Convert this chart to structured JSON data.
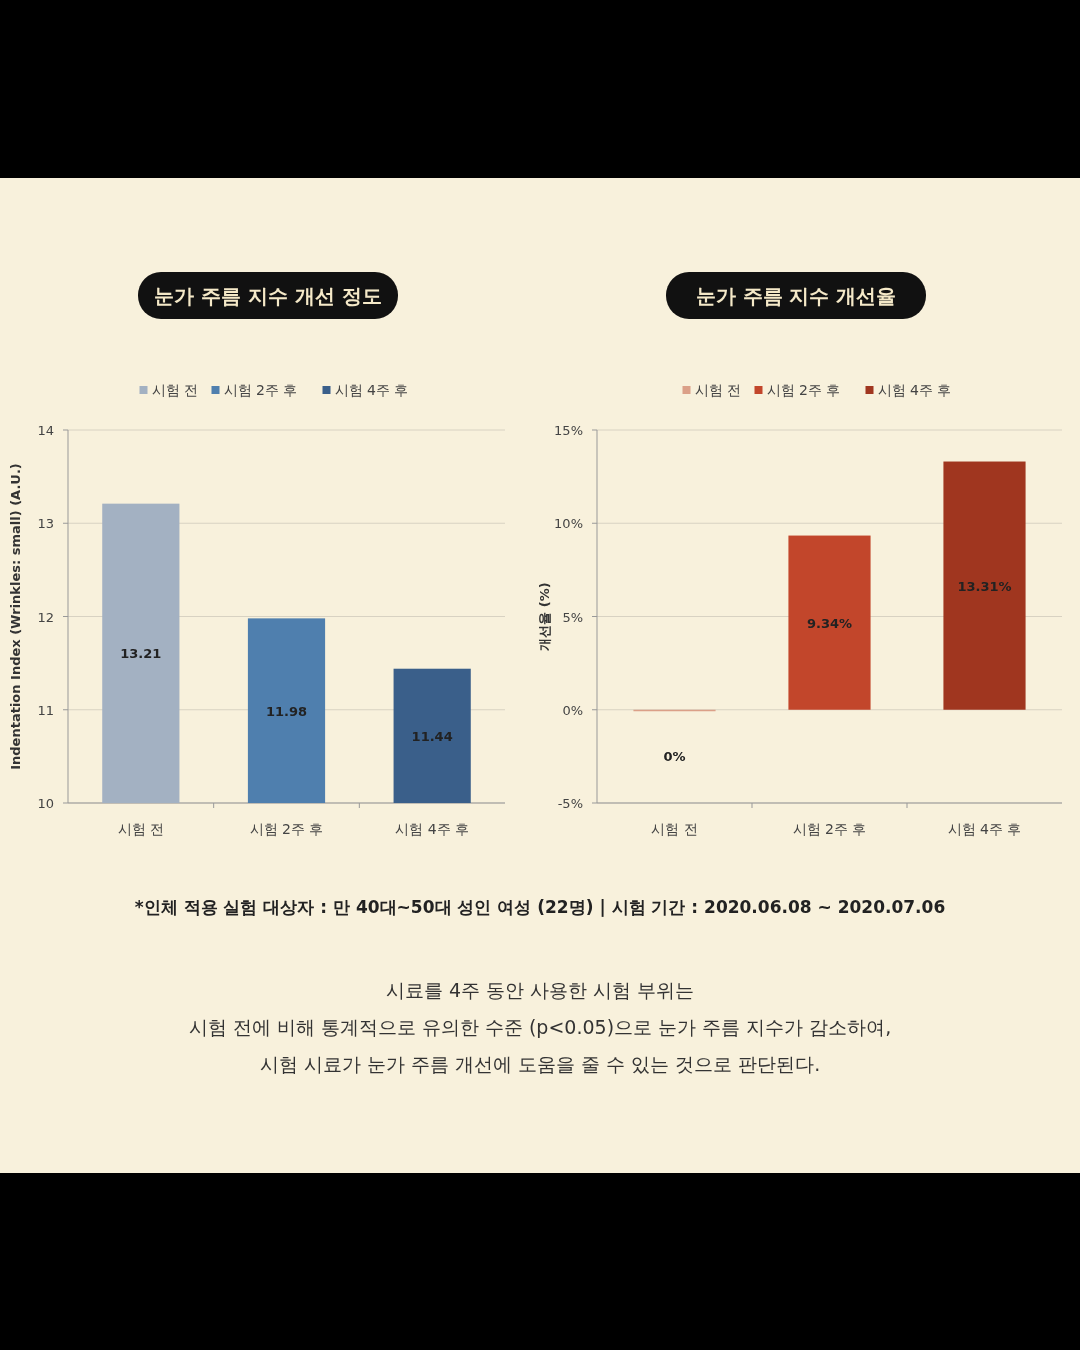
{
  "chart_data": [
    {
      "type": "bar",
      "title": "눈가 주름 지수 개선 정도",
      "ylabel": "Indentation Index (Wrinkles: small) (A.U.)",
      "categories": [
        "시험 전",
        "시험 2주 후",
        "시험 4주 후"
      ],
      "series": [
        {
          "name": "시험 전",
          "color": "#a3b1c2",
          "values": [
            13.21,
            null,
            null
          ]
        },
        {
          "name": "시험 2주 후",
          "color": "#4f7fae",
          "values": [
            null,
            11.98,
            null
          ]
        },
        {
          "name": "시험 4주 후",
          "color": "#3a5f8a",
          "values": [
            null,
            null,
            11.44
          ]
        }
      ],
      "ylim": [
        10,
        14
      ],
      "yticks": [
        10,
        11,
        12,
        13,
        14
      ],
      "grid": "y",
      "legend": "top",
      "data_labels": true,
      "annotations": [
        "*인체 적용 실험 대상자 : 만 40대~50대 성인 여성 (22명) | 시험 기간 : 2020.06.08 ~ 2020.07.06",
        "시료를 4주 동안 사용한 시험 부위는",
        "시험 전에 비해 통계적으로 유의한 수준 (p<0.05)으로 눈가 주름 지수가 감소하여,",
        "시험 시료가 눈가 주름 개선에 도움을 줄 수 있는 것으로 판단된다."
      ]
    },
    {
      "type": "bar",
      "title": "눈가 주름 지수 개선율",
      "ylabel": "개선율 (%)",
      "categories": [
        "시험 전",
        "시험 2주 후",
        "시험 4주 후"
      ],
      "series": [
        {
          "name": "시험 전",
          "color": "#dba088",
          "values": [
            0,
            null,
            null
          ],
          "value_labels": [
            "0%",
            null,
            null
          ]
        },
        {
          "name": "시험 2주 후",
          "color": "#c2462b",
          "values": [
            null,
            9.34,
            null
          ],
          "value_labels": [
            null,
            "9.34%",
            null
          ]
        },
        {
          "name": "시험 4주 후",
          "color": "#a0361f",
          "values": [
            null,
            null,
            13.31
          ],
          "value_labels": [
            null,
            null,
            "13.31%"
          ]
        }
      ],
      "ylim": [
        -5,
        15
      ],
      "yticks": [
        {
          "value": -5,
          "label": "-5%"
        },
        {
          "value": 0,
          "label": "0%"
        },
        {
          "value": 5,
          "label": "5%"
        },
        {
          "value": 10,
          "label": "10%"
        },
        {
          "value": 15,
          "label": "15%"
        }
      ],
      "grid": "y",
      "legend": "top"
    }
  ]
}
